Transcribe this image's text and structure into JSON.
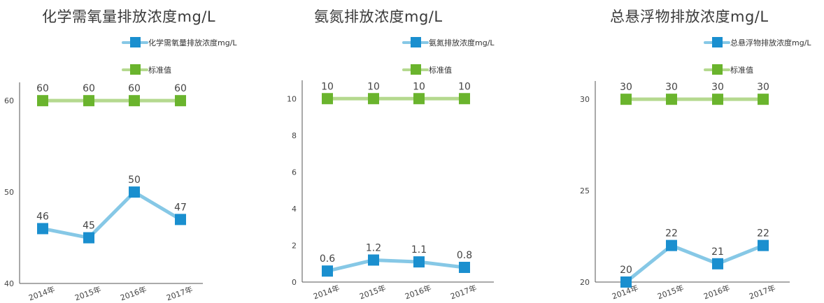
{
  "colors": {
    "measured": "#1a8fcf",
    "measured_line": "#86c8e6",
    "standard": "#6ab42d",
    "standard_line": "#b5d98f",
    "axis": "#555555"
  },
  "chart_data": [
    {
      "type": "line",
      "title": "化学需氧量排放浓度mg/L",
      "categories": [
        "2014年",
        "2015年",
        "2016年",
        "2017年"
      ],
      "series": [
        {
          "name": "化学需氧量排放浓度mg/L",
          "values": [
            46,
            45,
            50,
            47
          ]
        },
        {
          "name": "标准值",
          "values": [
            60,
            60,
            60,
            60
          ]
        }
      ],
      "ylim": [
        40,
        62
      ],
      "yticks": [
        40,
        50,
        60
      ],
      "data_labels": {
        "series0": [
          "46",
          "45",
          "50",
          "47"
        ],
        "series1": [
          "60",
          "60",
          "60",
          "60"
        ]
      },
      "legend_placement": "top-right",
      "grid": false
    },
    {
      "type": "line",
      "title": "氨氮排放浓度mg/L",
      "categories": [
        "2014年",
        "2015年",
        "2016年",
        "2017年"
      ],
      "series": [
        {
          "name": "氨氮排放浓度mg/L",
          "values": [
            0.6,
            1.2,
            1.1,
            0.8
          ]
        },
        {
          "name": "标准值",
          "values": [
            10,
            10,
            10,
            10
          ]
        }
      ],
      "ylim": [
        0,
        11
      ],
      "yticks": [
        0,
        2,
        4,
        6,
        8,
        10
      ],
      "data_labels": {
        "series0": [
          "0.6",
          "1.2",
          "1.1",
          "0.8"
        ],
        "series1": [
          "10",
          "10",
          "10",
          "10"
        ]
      },
      "legend_placement": "top-right",
      "grid": false
    },
    {
      "type": "line",
      "title": "总悬浮物排放浓度mg/L",
      "categories": [
        "2014年",
        "2015年",
        "2016年",
        "2017年"
      ],
      "series": [
        {
          "name": "总悬浮物排放浓度mg/L",
          "values": [
            20,
            22,
            21,
            22
          ]
        },
        {
          "name": "标准值",
          "values": [
            30,
            30,
            30,
            30
          ]
        }
      ],
      "ylim": [
        20,
        31
      ],
      "yticks": [
        20,
        25,
        30
      ],
      "data_labels": {
        "series0": [
          "20",
          "22",
          "21",
          "22"
        ],
        "series1": [
          "30",
          "30",
          "30",
          "30"
        ]
      },
      "legend_placement": "top-right",
      "grid": false
    }
  ]
}
